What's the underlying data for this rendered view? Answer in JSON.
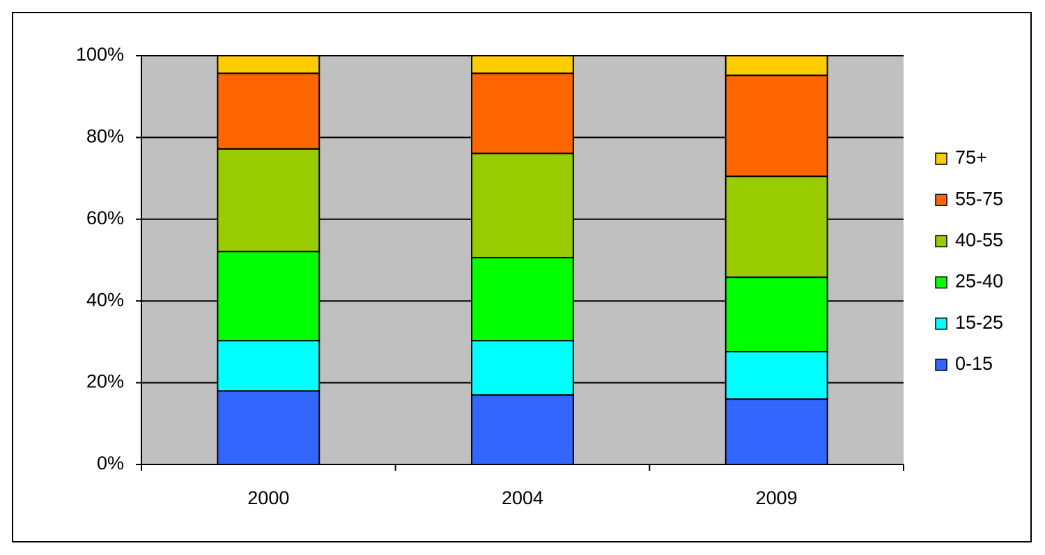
{
  "chart_data": {
    "type": "stacked_bar",
    "categories": [
      "2000",
      "2004",
      "2009"
    ],
    "series": [
      {
        "name": "0-15",
        "color": "#3366ff",
        "values": [
          18,
          17,
          16
        ]
      },
      {
        "name": "15-25",
        "color": "#00ffff",
        "values": [
          12.3,
          13.3,
          11.6
        ]
      },
      {
        "name": "25-40",
        "color": "#00ff00",
        "values": [
          21.8,
          20.3,
          18.2
        ]
      },
      {
        "name": "40-55",
        "color": "#99cc00",
        "values": [
          25.1,
          25.5,
          24.7
        ]
      },
      {
        "name": "55-75",
        "color": "#ff6600",
        "values": [
          18.5,
          19.6,
          24.7
        ]
      },
      {
        "name": "75+",
        "color": "#ffcc00",
        "values": [
          4.3,
          4.3,
          4.8
        ]
      }
    ],
    "ylim": [
      0,
      100
    ],
    "yticks": [
      {
        "value": 0,
        "label": "0%"
      },
      {
        "value": 20,
        "label": "20%"
      },
      {
        "value": 40,
        "label": "40%"
      },
      {
        "value": 60,
        "label": "60%"
      },
      {
        "value": 80,
        "label": "80%"
      },
      {
        "value": 100,
        "label": "100%"
      }
    ],
    "grid": true,
    "plot_background": "#c0c0c0",
    "legend": "right"
  }
}
